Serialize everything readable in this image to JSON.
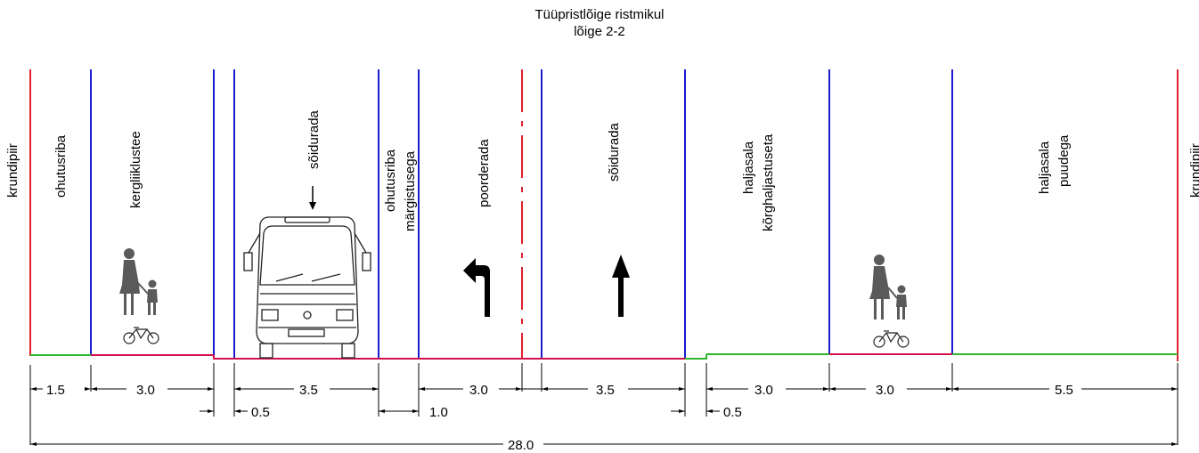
{
  "title_line1": "Tüüpristlõige ristmikul",
  "title_line2": "lõige 2-2",
  "colors": {
    "boundary": "#e0202a",
    "lane_line": "#1a1ad0",
    "surface": "#d0104a",
    "green": "#2db82d",
    "black": "#000000"
  },
  "zone_labels": {
    "left_boundary": "krundipiir",
    "safety_strip": "ohutusriba",
    "light_traffic": "kergliiklustee",
    "lane_left": "sõidurada",
    "safety_marked_1": "ohutusriba",
    "safety_marked_2": "märgistusega",
    "turn_lane": "poorderada",
    "lane_right": "sõidurada",
    "green_no_tall_1": "haljasala",
    "green_no_tall_2": "kõrghaljastuseta",
    "green_trees_1": "haljasala",
    "green_trees_2": "puudega",
    "right_boundary": "krundipiir"
  },
  "dimensions": {
    "d_1_5": "1.5",
    "d_3_0_a": "3.0",
    "d_3_5_a": "3.5",
    "d_3_0_b": "3.0",
    "d_3_5_b": "3.5",
    "d_3_0_c": "3.0",
    "d_3_0_d": "3.0",
    "d_5_5": "5.5",
    "d_0_5_a": "0.5",
    "d_1_0": "1.0",
    "d_0_5_b": "0.5",
    "total": "28.0"
  },
  "icons": [
    "bus-icon",
    "pedestrian-with-child-icon",
    "bicycle-icon",
    "turn-left-arrow-icon",
    "straight-arrow-icon",
    "down-arrow-icon"
  ]
}
